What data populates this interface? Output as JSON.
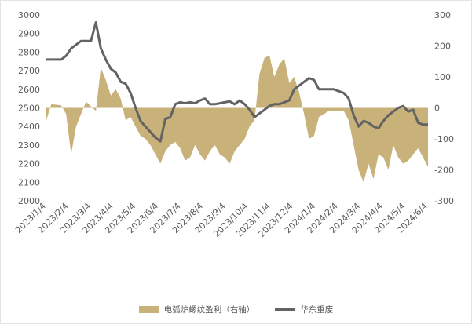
{
  "chart_data": {
    "type": "line",
    "title": "",
    "x": [
      "2023/1/4",
      "2023/1/11",
      "2023/1/18",
      "2023/1/25",
      "2023/2/1",
      "2023/2/8",
      "2023/2/15",
      "2023/2/22",
      "2023/3/1",
      "2023/3/8",
      "2023/3/15",
      "2023/3/22",
      "2023/3/29",
      "2023/4/5",
      "2023/4/12",
      "2023/4/19",
      "2023/4/26",
      "2023/5/3",
      "2023/5/10",
      "2023/5/17",
      "2023/5/24",
      "2023/5/31",
      "2023/6/7",
      "2023/6/14",
      "2023/6/21",
      "2023/6/28",
      "2023/7/5",
      "2023/7/12",
      "2023/7/19",
      "2023/7/26",
      "2023/8/2",
      "2023/8/9",
      "2023/8/16",
      "2023/8/23",
      "2023/8/30",
      "2023/9/6",
      "2023/9/13",
      "2023/9/20",
      "2023/9/27",
      "2023/10/4",
      "2023/10/11",
      "2023/10/18",
      "2023/10/25",
      "2023/11/1",
      "2023/11/8",
      "2023/11/15",
      "2023/11/22",
      "2023/11/29",
      "2023/12/6",
      "2023/12/13",
      "2023/12/20",
      "2023/12/27",
      "2024/1/3",
      "2024/1/10",
      "2024/1/17",
      "2024/1/24",
      "2024/1/31",
      "2024/2/7",
      "2024/2/14",
      "2024/2/21",
      "2024/2/28",
      "2024/3/6",
      "2024/3/13",
      "2024/3/20",
      "2024/3/27",
      "2024/4/3",
      "2024/4/10",
      "2024/4/17",
      "2024/4/24",
      "2024/5/1",
      "2024/5/8",
      "2024/5/15",
      "2024/5/22",
      "2024/5/29",
      "2024/6/5",
      "2024/6/12",
      "2024/6/19",
      "2024/6/26"
    ],
    "x_tick_labels": [
      "2023/1/4",
      "2023/2/4",
      "2023/3/4",
      "2023/4/4",
      "2023/5/4",
      "2023/6/4",
      "2023/7/4",
      "2023/8/4",
      "2023/9/4",
      "2023/10/4",
      "2023/11/4",
      "2023/12/4",
      "2024/1/4",
      "2024/2/4",
      "2024/3/4",
      "2024/4/4",
      "2024/5/4",
      "2024/6/4"
    ],
    "y_left": {
      "ticks": [
        2000,
        2100,
        2200,
        2300,
        2400,
        2500,
        2600,
        2700,
        2800,
        2900,
        3000
      ],
      "ylim": [
        2000,
        3000
      ]
    },
    "y_right": {
      "ticks": [
        -300,
        -200,
        -100,
        0,
        100,
        200,
        300
      ],
      "ylim": [
        -300,
        300
      ]
    },
    "series": [
      {
        "name": "电弧炉螺纹盈利（右轴）",
        "type": "area",
        "axis": "right",
        "color": "#c9b17a",
        "values": [
          -40,
          12,
          10,
          8,
          -20,
          -150,
          -60,
          -20,
          20,
          5,
          -10,
          130,
          90,
          40,
          60,
          30,
          -40,
          -30,
          -60,
          -90,
          -100,
          -120,
          -150,
          -180,
          -140,
          -120,
          -110,
          -130,
          -170,
          -160,
          -120,
          -150,
          -170,
          -140,
          -120,
          -150,
          -160,
          -180,
          -140,
          -120,
          -100,
          -60,
          -40,
          110,
          160,
          170,
          100,
          140,
          160,
          80,
          100,
          50,
          -20,
          -100,
          -90,
          -30,
          -20,
          -10,
          -10,
          -10,
          -10,
          -40,
          -120,
          -200,
          -240,
          -180,
          -230,
          -150,
          -160,
          -200,
          -120,
          -160,
          -180,
          -170,
          -150,
          -130,
          -160,
          -190
        ]
      },
      {
        "name": "华东重废",
        "type": "line",
        "axis": "left",
        "color": "#636363",
        "values": [
          2760,
          2760,
          2760,
          2760,
          2780,
          2820,
          2840,
          2860,
          2860,
          2860,
          2960,
          2820,
          2760,
          2710,
          2690,
          2640,
          2630,
          2580,
          2500,
          2430,
          2400,
          2370,
          2340,
          2320,
          2440,
          2450,
          2520,
          2530,
          2525,
          2530,
          2525,
          2540,
          2550,
          2520,
          2520,
          2525,
          2530,
          2535,
          2520,
          2540,
          2520,
          2490,
          2450,
          2470,
          2490,
          2510,
          2520,
          2520,
          2530,
          2540,
          2600,
          2620,
          2640,
          2660,
          2650,
          2600,
          2600,
          2600,
          2600,
          2590,
          2580,
          2550,
          2460,
          2400,
          2430,
          2420,
          2400,
          2390,
          2430,
          2460,
          2480,
          2500,
          2510,
          2480,
          2490,
          2420,
          2410,
          2410
        ]
      }
    ],
    "legend_position": "bottom",
    "grid": false
  }
}
